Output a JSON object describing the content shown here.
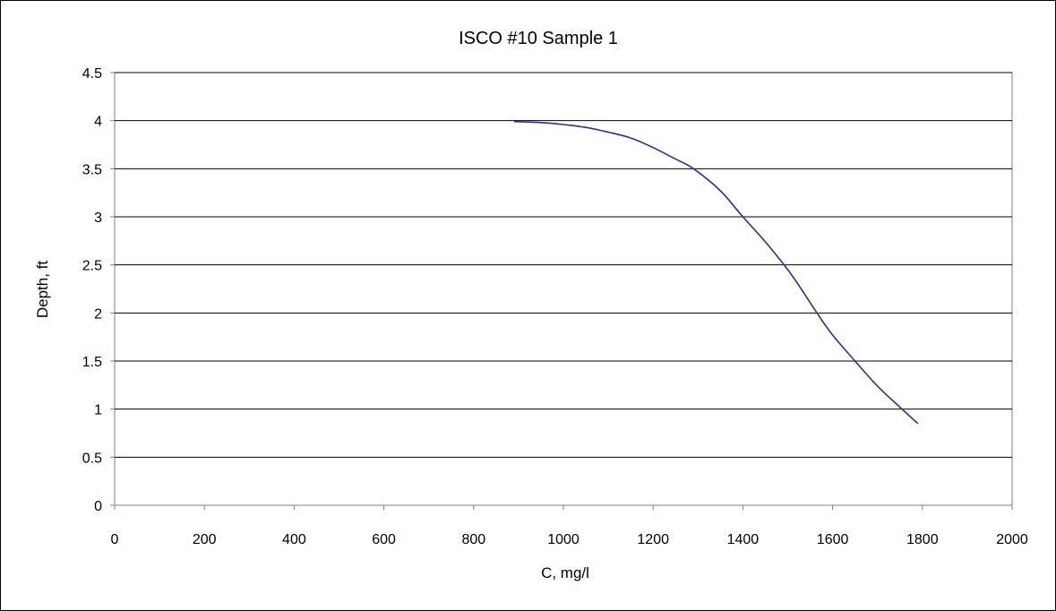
{
  "chart_data": {
    "type": "line",
    "title": "ISCO #10 Sample 1",
    "xlabel": "C, mg/l",
    "ylabel": "Depth, ft",
    "xlim": [
      0,
      2000
    ],
    "ylim": [
      0,
      4.5
    ],
    "xticks": [
      "0",
      "200",
      "400",
      "600",
      "800",
      "1000",
      "1200",
      "1400",
      "1600",
      "1800",
      "2000"
    ],
    "yticks": [
      "0",
      "0.5",
      "1",
      "1.5",
      "2",
      "2.5",
      "3",
      "3.5",
      "4",
      "4.5"
    ],
    "grid": "horizontal major",
    "legend": "none",
    "series": [
      {
        "color": "#2e2e9e",
        "x": [
          890,
          950,
          1000,
          1050,
          1100,
          1150,
          1200,
          1250,
          1290,
          1350,
          1400,
          1450,
          1500,
          1530,
          1565,
          1600,
          1650,
          1700,
          1750,
          1790
        ],
        "y": [
          3.99,
          3.98,
          3.96,
          3.93,
          3.88,
          3.82,
          3.72,
          3.6,
          3.5,
          3.27,
          3.0,
          2.74,
          2.45,
          2.25,
          2.0,
          1.77,
          1.5,
          1.24,
          1.02,
          0.85
        ]
      }
    ]
  }
}
